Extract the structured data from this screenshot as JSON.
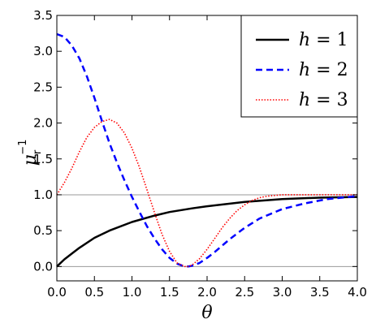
{
  "chart_data": {
    "type": "line",
    "xlabel": "θ",
    "ylabel": "μ",
    "ylabel_subscript": "r",
    "ylabel_superscript": "−1",
    "xlim": [
      0,
      4
    ],
    "ylim": [
      -0.2,
      3.5
    ],
    "xticks": [
      "0.0",
      "0.5",
      "1.0",
      "1.5",
      "2.0",
      "2.5",
      "3.0",
      "3.5",
      "4.0"
    ],
    "yticks": [
      "0.0",
      "0.5",
      "1.0",
      "1.5",
      "2.0",
      "2.5",
      "3.0",
      "3.5"
    ],
    "reference_lines": [
      0.0,
      1.0
    ],
    "legend_position": "top-right",
    "series": [
      {
        "name": "h = 1",
        "legend_h": "h",
        "legend_eq": "=",
        "legend_value": "1",
        "color": "#000000",
        "dash": "solid",
        "x": [
          0,
          0.1,
          0.2,
          0.3,
          0.5,
          0.7,
          1.0,
          1.3,
          1.5,
          1.8,
          2.0,
          2.5,
          3.0,
          3.5,
          4.0
        ],
        "y": [
          0.0,
          0.1,
          0.18,
          0.26,
          0.4,
          0.5,
          0.62,
          0.71,
          0.76,
          0.81,
          0.84,
          0.9,
          0.94,
          0.96,
          0.97
        ]
      },
      {
        "name": "h = 2",
        "legend_h": "h",
        "legend_eq": "=",
        "legend_value": "2",
        "color": "#0000ff",
        "dash": "dashed",
        "x": [
          0,
          0.1,
          0.2,
          0.3,
          0.4,
          0.5,
          0.6,
          0.7,
          0.8,
          0.9,
          1.0,
          1.1,
          1.2,
          1.3,
          1.4,
          1.5,
          1.6,
          1.7,
          1.75,
          1.8,
          1.9,
          2.0,
          2.1,
          2.2,
          2.3,
          2.5,
          2.7,
          3.0,
          3.3,
          3.6,
          4.0
        ],
        "y": [
          3.24,
          3.2,
          3.08,
          2.9,
          2.65,
          2.35,
          2.03,
          1.72,
          1.45,
          1.2,
          0.97,
          0.76,
          0.56,
          0.39,
          0.24,
          0.12,
          0.04,
          0.0,
          0.0,
          0.01,
          0.05,
          0.12,
          0.2,
          0.29,
          0.38,
          0.54,
          0.67,
          0.8,
          0.88,
          0.94,
          0.98
        ]
      },
      {
        "name": "h = 3",
        "legend_h": "h",
        "legend_eq": "=",
        "legend_value": "3",
        "color": "#ff0000",
        "dash": "dotted",
        "x": [
          0,
          0.1,
          0.2,
          0.3,
          0.4,
          0.5,
          0.6,
          0.7,
          0.8,
          0.9,
          1.0,
          1.1,
          1.2,
          1.3,
          1.4,
          1.5,
          1.6,
          1.7,
          1.75,
          1.8,
          1.9,
          2.0,
          2.1,
          2.2,
          2.3,
          2.4,
          2.5,
          2.6,
          2.7,
          2.8,
          3.0,
          3.3,
          3.6,
          4.0
        ],
        "y": [
          1.0,
          1.17,
          1.37,
          1.6,
          1.8,
          1.94,
          2.02,
          2.05,
          2.0,
          1.86,
          1.65,
          1.38,
          1.07,
          0.75,
          0.45,
          0.21,
          0.05,
          0.0,
          0.0,
          0.02,
          0.11,
          0.24,
          0.39,
          0.54,
          0.67,
          0.78,
          0.86,
          0.92,
          0.96,
          0.98,
          1.0,
          1.0,
          1.0,
          1.0
        ]
      }
    ]
  }
}
